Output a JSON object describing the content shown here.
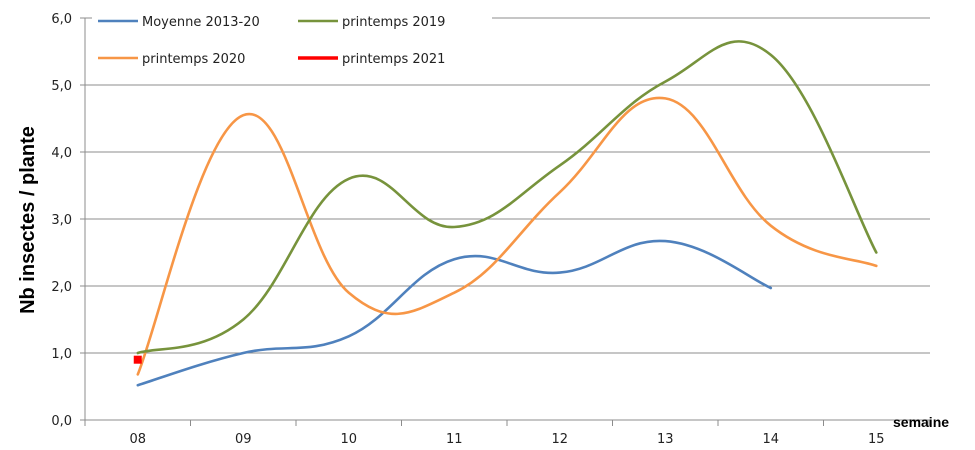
{
  "chart_data": {
    "type": "line",
    "title": "",
    "xlabel": "semaine",
    "ylabel": "Nb insectes / plante",
    "ylim": [
      0,
      6
    ],
    "yticks": [
      "0,0",
      "1,0",
      "2,0",
      "3,0",
      "4,0",
      "5,0",
      "6,0"
    ],
    "categories": [
      "08",
      "09",
      "10",
      "11",
      "12",
      "13",
      "14",
      "15"
    ],
    "grid": true,
    "legend_position": "top-left",
    "series": [
      {
        "name": "Moyenne 2013-20",
        "color": "#4f81bd",
        "values": [
          0.52,
          1.0,
          1.25,
          2.4,
          2.2,
          2.67,
          1.97,
          null
        ]
      },
      {
        "name": "printemps 2019",
        "color": "#77933c",
        "values": [
          1.0,
          1.5,
          3.6,
          2.88,
          3.8,
          5.05,
          5.45,
          2.5
        ]
      },
      {
        "name": "printemps 2020",
        "color": "#f79646",
        "values": [
          0.68,
          4.55,
          1.9,
          1.9,
          3.4,
          4.8,
          2.9,
          2.3
        ]
      },
      {
        "name": "printemps 2021",
        "color": "#ff0000",
        "values": [
          0.9,
          null,
          null,
          null,
          null,
          null,
          null,
          null
        ]
      }
    ]
  }
}
